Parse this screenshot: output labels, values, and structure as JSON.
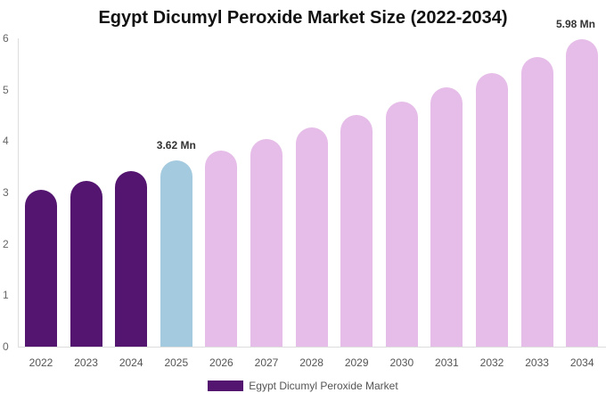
{
  "chart_data": {
    "type": "bar",
    "title": "Egypt Dicumyl Peroxide Market Size (2022-2034)",
    "xlabel": "",
    "ylabel": "",
    "ylim": [
      0,
      6
    ],
    "yticks": [
      "0",
      "1",
      "2",
      "3",
      "4",
      "5",
      "6"
    ],
    "grid": false,
    "legend_position": "bottom",
    "categories": [
      "2022",
      "2023",
      "2024",
      "2025",
      "2026",
      "2027",
      "2028",
      "2029",
      "2030",
      "2031",
      "2032",
      "2033",
      "2034"
    ],
    "series": [
      {
        "name": "Egypt Dicumyl Peroxide Market",
        "values": [
          3.05,
          3.23,
          3.42,
          3.62,
          3.81,
          4.04,
          4.27,
          4.51,
          4.77,
          5.05,
          5.32,
          5.64,
          5.98
        ]
      }
    ],
    "annotations": [
      {
        "category": "2025",
        "text": "3.62 Mn"
      },
      {
        "category": "2034",
        "text": "5.98 Mn"
      }
    ],
    "bar_colors": {
      "historical": "#541570",
      "current": "#a4cadf",
      "forecast": "#e6bde8"
    },
    "bar_color_per_category": [
      "#541570",
      "#541570",
      "#541570",
      "#a4cadf",
      "#e6bde8",
      "#e6bde8",
      "#e6bde8",
      "#e6bde8",
      "#e6bde8",
      "#e6bde8",
      "#e6bde8",
      "#e6bde8",
      "#e6bde8"
    ]
  },
  "legend": {
    "label": "Egypt Dicumyl Peroxide Market",
    "color": "#541570"
  }
}
